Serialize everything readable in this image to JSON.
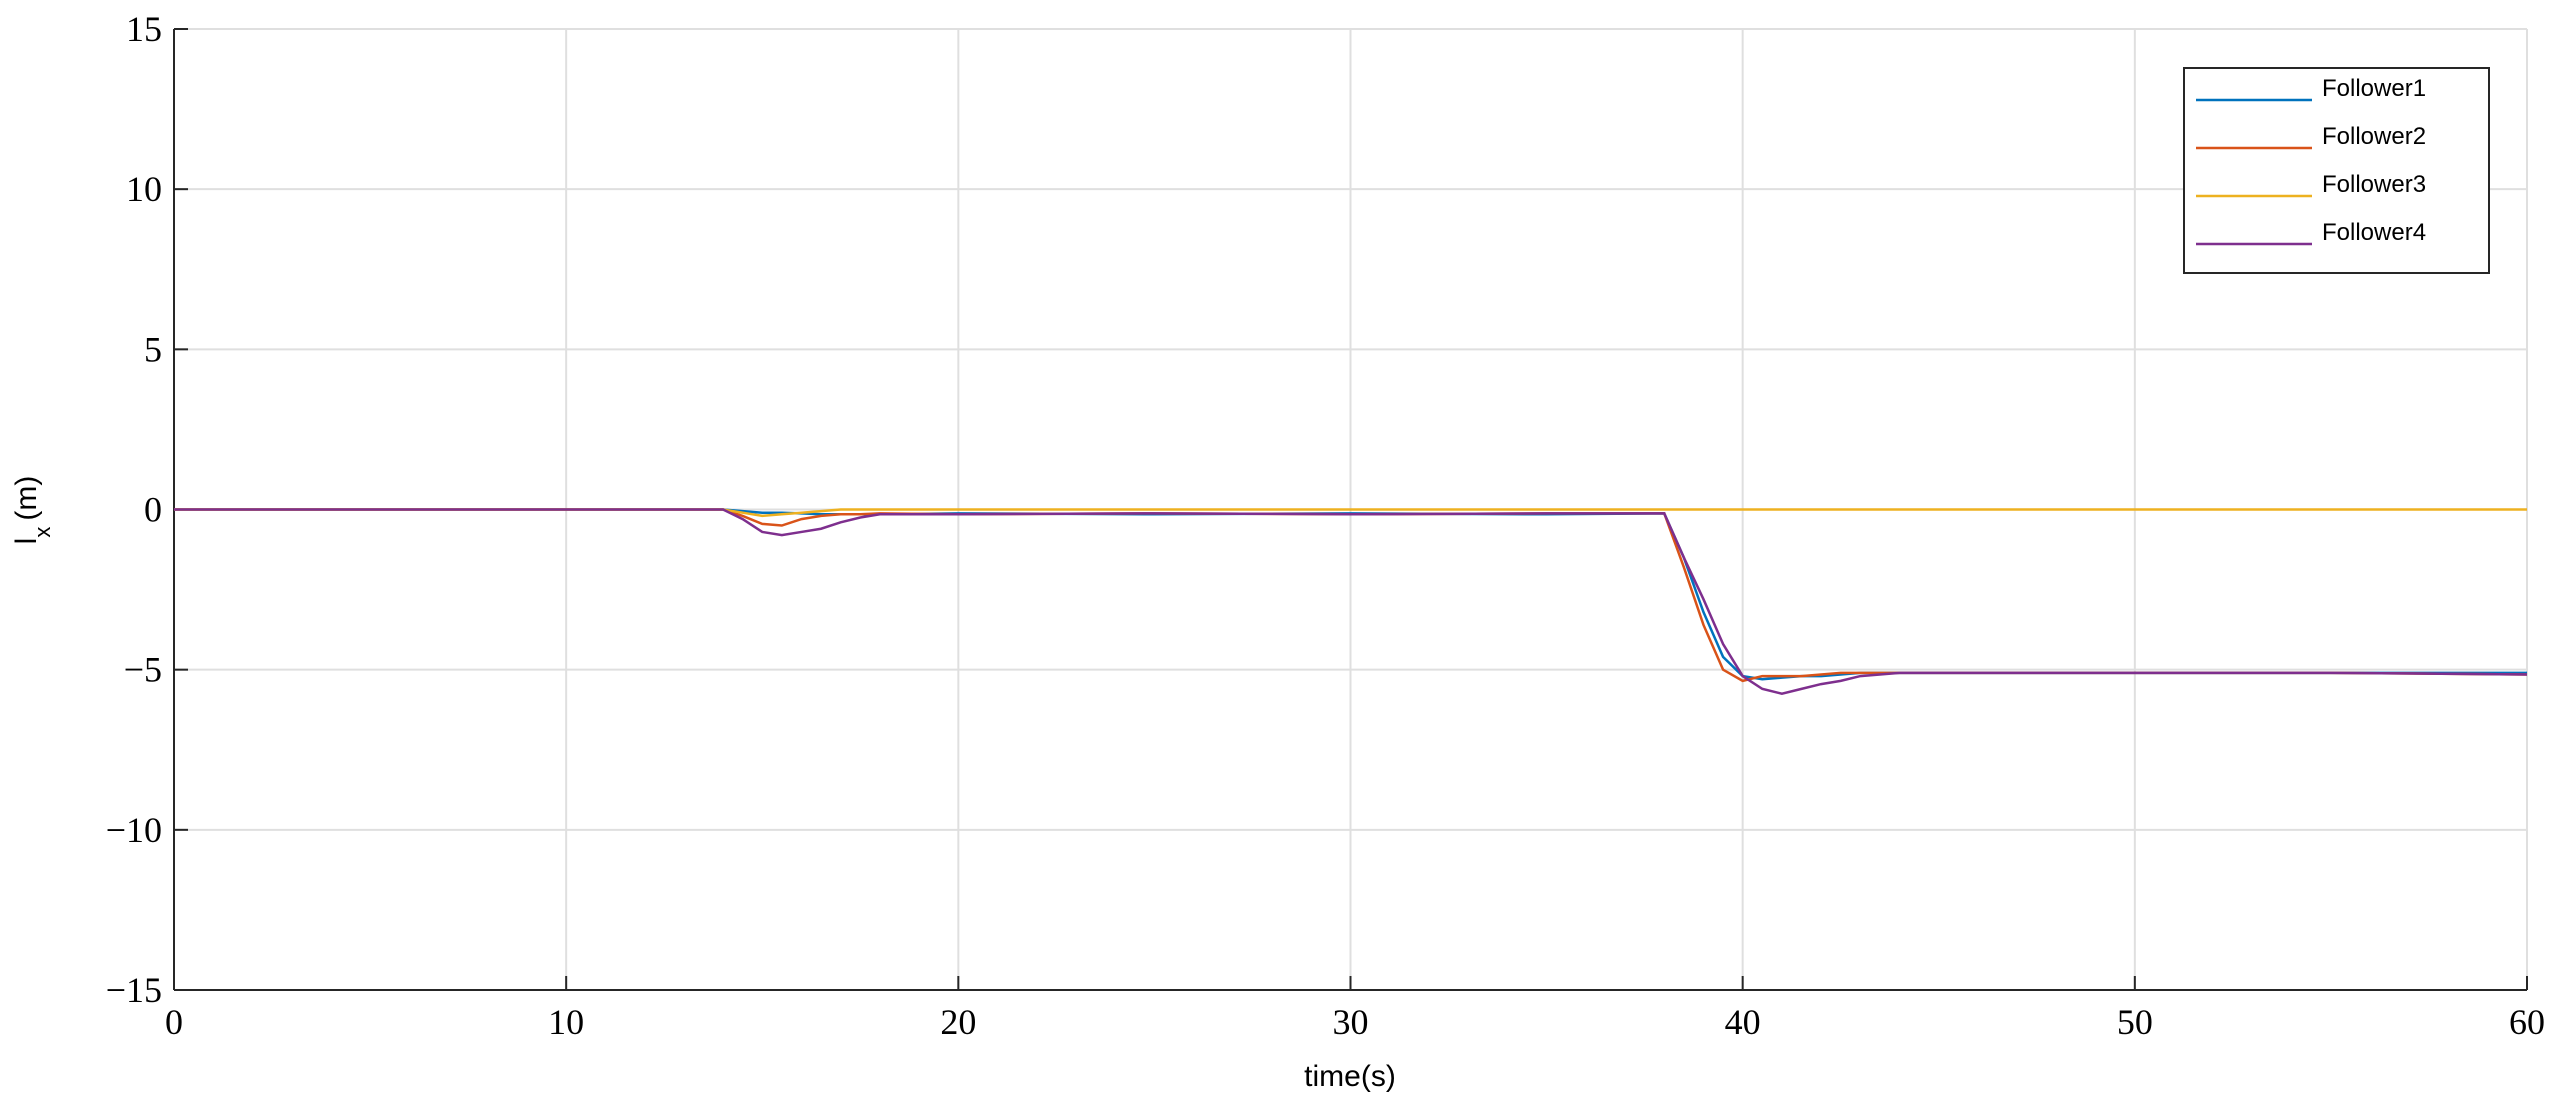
{
  "chart_data": {
    "type": "line",
    "xlabel": "time(s)",
    "ylabel": {
      "text": "l",
      "subscript": "x",
      "unit": "(m)"
    },
    "x": [
      0,
      14,
      14.5,
      15,
      15.5,
      16,
      16.5,
      17,
      17.5,
      18,
      20,
      25,
      30,
      35,
      38,
      38.5,
      39,
      39.5,
      40,
      40.5,
      41,
      41.5,
      42,
      42.5,
      43,
      44,
      50,
      55,
      60
    ],
    "series": [
      {
        "name": "Follower1",
        "color": "#0072bd",
        "values": [
          0,
          0,
          -0.05,
          -0.1,
          -0.1,
          -0.12,
          -0.15,
          -0.15,
          -0.15,
          -0.15,
          -0.12,
          -0.15,
          -0.12,
          -0.15,
          -0.12,
          -1.5,
          -3.2,
          -4.6,
          -5.2,
          -5.3,
          -5.25,
          -5.2,
          -5.2,
          -5.15,
          -5.1,
          -5.1,
          -5.1,
          -5.1,
          -5.1
        ]
      },
      {
        "name": "Follower2",
        "color": "#d95319",
        "values": [
          0,
          0,
          -0.2,
          -0.45,
          -0.5,
          -0.3,
          -0.2,
          -0.15,
          -0.15,
          -0.12,
          -0.15,
          -0.12,
          -0.15,
          -0.12,
          -0.12,
          -1.8,
          -3.6,
          -5.0,
          -5.35,
          -5.2,
          -5.2,
          -5.2,
          -5.15,
          -5.1,
          -5.1,
          -5.1,
          -5.1,
          -5.1,
          -5.15
        ]
      },
      {
        "name": "Follower3",
        "color": "#edb120",
        "values": [
          0,
          0,
          -0.1,
          -0.2,
          -0.15,
          -0.1,
          -0.05,
          0,
          0,
          0,
          0,
          0,
          0,
          0,
          0,
          0,
          0,
          0,
          0,
          0,
          0,
          0,
          0,
          0,
          0,
          0,
          0,
          0,
          0
        ]
      },
      {
        "name": "Follower4",
        "color": "#7e2f8e",
        "values": [
          0,
          0,
          -0.3,
          -0.7,
          -0.8,
          -0.7,
          -0.6,
          -0.4,
          -0.25,
          -0.15,
          -0.15,
          -0.12,
          -0.15,
          -0.12,
          -0.12,
          -1.5,
          -2.8,
          -4.2,
          -5.2,
          -5.6,
          -5.75,
          -5.6,
          -5.45,
          -5.35,
          -5.2,
          -5.1,
          -5.1,
          -5.1,
          -5.15
        ]
      }
    ],
    "xlim": [
      0,
      60
    ],
    "xticks": [
      0,
      10,
      20,
      30,
      40,
      50,
      60
    ],
    "ylim": [
      -15,
      15
    ],
    "yticks": [
      {
        "value": -15,
        "label": "−15"
      },
      {
        "value": -10,
        "label": "−10"
      },
      {
        "value": -5,
        "label": "−5"
      },
      0,
      5,
      10,
      15
    ],
    "grid": true,
    "legend": "top-right"
  }
}
